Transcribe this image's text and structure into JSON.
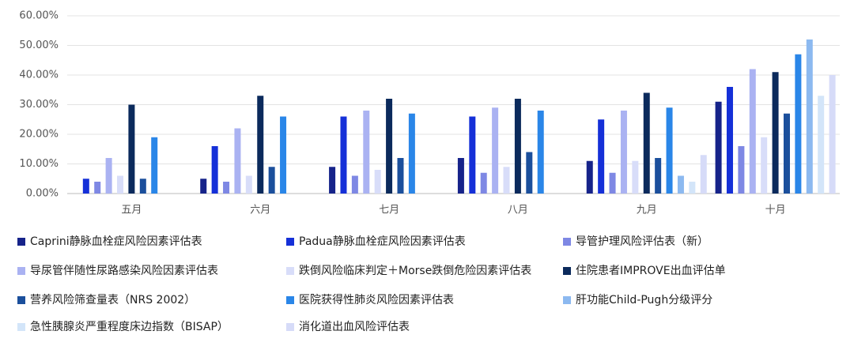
{
  "chart_data": {
    "type": "bar",
    "categories": [
      "五月",
      "六月",
      "七月",
      "八月",
      "九月",
      "十月"
    ],
    "series": [
      {
        "name": "Caprini静脉血栓症风险因素评估表",
        "color": "#16238a",
        "values": [
          null,
          5,
          9,
          12,
          11,
          31
        ]
      },
      {
        "name": "Padua静脉血栓症风险因素评估表",
        "color": "#1530d8",
        "values": [
          5,
          16,
          26,
          26,
          25,
          36
        ]
      },
      {
        "name": "导管护理风险评估表（新）",
        "color": "#7e88e4",
        "values": [
          4,
          4,
          6,
          7,
          7,
          16
        ]
      },
      {
        "name": "导尿管伴随性尿路感染风险因素评估表",
        "color": "#aab2f2",
        "values": [
          12,
          22,
          28,
          29,
          28,
          42
        ]
      },
      {
        "name": "跌倒风险临床判定＋Morse跌倒危险因素评估表",
        "color": "#d8ddf9",
        "values": [
          6,
          6,
          8,
          9,
          11,
          19
        ]
      },
      {
        "name": "住院患者IMPROVE出血评估单",
        "color": "#0b2a5c",
        "values": [
          30,
          33,
          32,
          32,
          34,
          41
        ]
      },
      {
        "name": "营养风险筛查量表（NRS 2002）",
        "color": "#1b4f9c",
        "values": [
          5,
          9,
          12,
          14,
          12,
          27
        ]
      },
      {
        "name": "医院获得性肺炎风险因素评估表",
        "color": "#2a86e8",
        "values": [
          19,
          26,
          27,
          28,
          29,
          47
        ]
      },
      {
        "name": "肝功能Child-Pugh分级评分",
        "color": "#8cb9f0",
        "values": [
          null,
          null,
          null,
          null,
          6,
          52
        ]
      },
      {
        "name": "急性胰腺炎严重程度床边指数（BISAP）",
        "color": "#d3e5f9",
        "values": [
          null,
          null,
          null,
          null,
          4,
          33
        ]
      },
      {
        "name": "消化道出血风险评估表",
        "color": "#d6dbf8",
        "values": [
          null,
          null,
          null,
          null,
          13,
          40
        ]
      }
    ],
    "ylim": [
      0,
      60
    ],
    "yticks": [
      {
        "value": 0,
        "label": "0.00%"
      },
      {
        "value": 10,
        "label": "10.00%"
      },
      {
        "value": 20,
        "label": "20.00%"
      },
      {
        "value": 30,
        "label": "30.00%"
      },
      {
        "value": 40,
        "label": "40.00%"
      },
      {
        "value": 50,
        "label": "50.00%"
      },
      {
        "value": 60,
        "label": "60.00%"
      }
    ],
    "grid": true
  }
}
